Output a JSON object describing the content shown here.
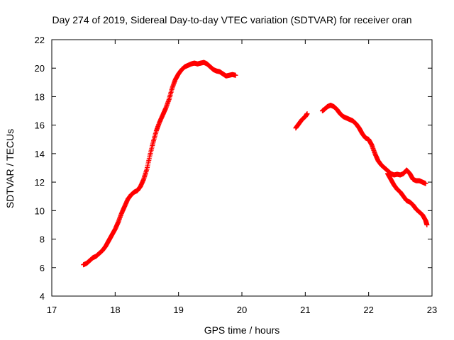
{
  "chart_data": {
    "type": "scatter",
    "title": "Day 274 of 2019, Sidereal Day-to-day VTEC variation (SDTVAR) for receiver oran",
    "xlabel": "GPS time / hours",
    "ylabel": "SDTVAR / TECUs",
    "xlim": [
      17,
      23
    ],
    "ylim": [
      4,
      22
    ],
    "xticks": [
      17,
      18,
      19,
      20,
      21,
      22,
      23
    ],
    "yticks": [
      4,
      6,
      8,
      10,
      12,
      14,
      16,
      18,
      20,
      22
    ],
    "grid": false,
    "marker": "+",
    "color": "#ff0000",
    "series": [
      {
        "name": "segment-1",
        "x": [
          17.5,
          17.55,
          17.6,
          17.65,
          17.7,
          17.75,
          17.8,
          17.85,
          17.9,
          17.95,
          18.0,
          18.05,
          18.1,
          18.15,
          18.2,
          18.25,
          18.3,
          18.35,
          18.4,
          18.45,
          18.5,
          18.55,
          18.6,
          18.65,
          18.7,
          18.75,
          18.8,
          18.85,
          18.9,
          18.95,
          19.0,
          19.05,
          19.1,
          19.15,
          19.2,
          19.25,
          19.3,
          19.35,
          19.4,
          19.45,
          19.5,
          19.55,
          19.6,
          19.65,
          19.7,
          19.75,
          19.8,
          19.85,
          19.9
        ],
        "y": [
          6.2,
          6.3,
          6.5,
          6.7,
          6.8,
          7.0,
          7.2,
          7.5,
          7.9,
          8.3,
          8.7,
          9.2,
          9.8,
          10.3,
          10.8,
          11.1,
          11.3,
          11.4,
          11.7,
          12.2,
          12.9,
          13.9,
          14.8,
          15.6,
          16.2,
          16.7,
          17.2,
          17.8,
          18.6,
          19.2,
          19.6,
          19.9,
          20.1,
          20.2,
          20.3,
          20.35,
          20.3,
          20.35,
          20.4,
          20.3,
          20.1,
          19.9,
          19.8,
          19.75,
          19.6,
          19.45,
          19.5,
          19.55,
          19.5
        ]
      },
      {
        "name": "segment-2",
        "x": [
          20.85,
          20.9,
          20.95,
          21.0,
          21.03
        ],
        "y": [
          15.8,
          16.1,
          16.4,
          16.6,
          16.8
        ]
      },
      {
        "name": "segment-3",
        "x": [
          21.27,
          21.3,
          21.35,
          21.4,
          21.45,
          21.5,
          21.55,
          21.6,
          21.65,
          21.7,
          21.75,
          21.8,
          21.85,
          21.9,
          21.95,
          22.0,
          22.05,
          22.1,
          22.15,
          22.2,
          22.25,
          22.3,
          22.35,
          22.4,
          22.45,
          22.5,
          22.55,
          22.6,
          22.65,
          22.7,
          22.75,
          22.8,
          22.85,
          22.9
        ],
        "y": [
          17.0,
          17.1,
          17.3,
          17.4,
          17.3,
          17.1,
          16.8,
          16.6,
          16.5,
          16.4,
          16.3,
          16.1,
          15.8,
          15.4,
          15.1,
          15.0,
          14.6,
          14.0,
          13.5,
          13.2,
          13.0,
          12.8,
          12.6,
          12.5,
          12.55,
          12.5,
          12.6,
          12.85,
          12.6,
          12.2,
          12.1,
          12.1,
          12.0,
          11.9
        ]
      },
      {
        "name": "segment-4",
        "x": [
          22.3,
          22.35,
          22.4,
          22.45,
          22.5,
          22.55,
          22.6,
          22.65,
          22.7,
          22.75,
          22.8,
          22.85,
          22.9,
          22.92
        ],
        "y": [
          12.6,
          12.2,
          11.8,
          11.5,
          11.3,
          11.0,
          10.7,
          10.6,
          10.4,
          10.1,
          9.9,
          9.7,
          9.3,
          9.0
        ]
      }
    ]
  }
}
